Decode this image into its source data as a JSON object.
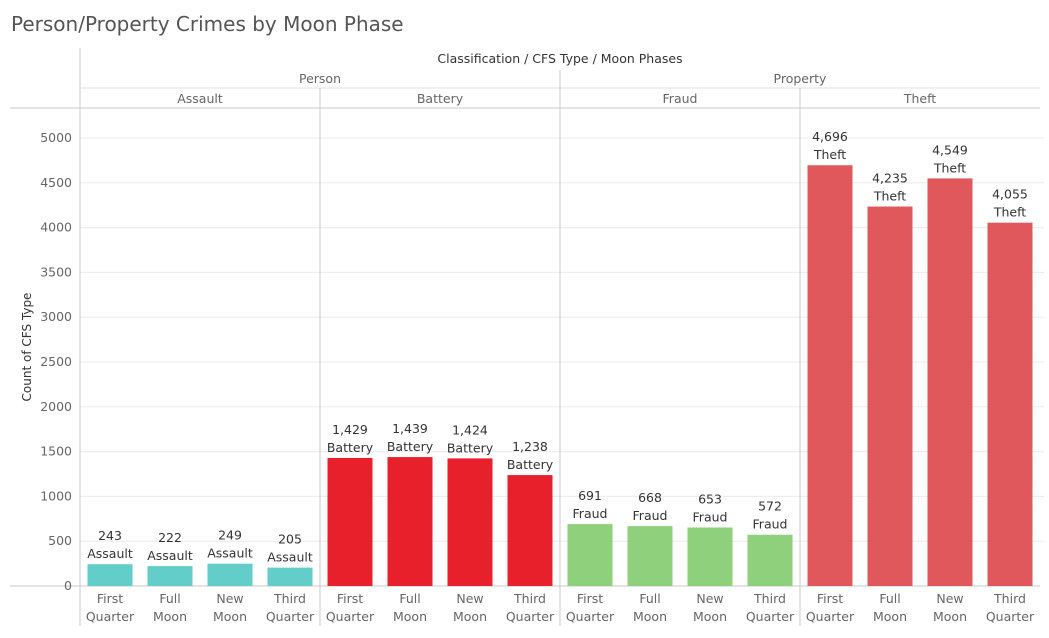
{
  "page_title": "Person/Property Crimes by Moon Phase",
  "header_title": "Classification / CFS Type / Moon Phases",
  "y_axis_label": "Count of CFS Type",
  "colors": {
    "Assault": "#62cdc9",
    "Battery": "#e8202c",
    "Fraud": "#8ed07c",
    "Theft": "#e0585c",
    "grid": "#ececec",
    "divider": "#c8c8c8",
    "text": "#333333",
    "muted": "#666666"
  },
  "chart_data": {
    "type": "bar",
    "title": "Person/Property Crimes by Moon Phase",
    "ylabel": "Count of CFS Type",
    "ylim": [
      0,
      5000
    ],
    "yticks": [
      0,
      500,
      1000,
      1500,
      2000,
      2500,
      3000,
      3500,
      4000,
      4500,
      5000
    ],
    "grid": true,
    "classifications": [
      {
        "name": "Person",
        "cfs_types": [
          {
            "name": "Assault",
            "phases": [
              "First Quarter",
              "Full Moon",
              "New Moon",
              "Third Quarter"
            ],
            "values": [
              243,
              222,
              249,
              205
            ],
            "labels": [
              "243",
              "222",
              "249",
              "205"
            ]
          },
          {
            "name": "Battery",
            "phases": [
              "First Quarter",
              "Full Moon",
              "New Moon",
              "Third Quarter"
            ],
            "values": [
              1429,
              1439,
              1424,
              1238
            ],
            "labels": [
              "1,429",
              "1,439",
              "1,424",
              "1,238"
            ]
          }
        ]
      },
      {
        "name": "Property",
        "cfs_types": [
          {
            "name": "Fraud",
            "phases": [
              "First Quarter",
              "Full Moon",
              "New Moon",
              "Third Quarter"
            ],
            "values": [
              691,
              668,
              653,
              572
            ],
            "labels": [
              "691",
              "668",
              "653",
              "572"
            ]
          },
          {
            "name": "Theft",
            "phases": [
              "First Quarter",
              "Full Moon",
              "New Moon",
              "Third Quarter"
            ],
            "values": [
              4696,
              4235,
              4549,
              4055
            ],
            "labels": [
              "4,696",
              "4,235",
              "4,549",
              "4,055"
            ]
          }
        ]
      }
    ]
  }
}
